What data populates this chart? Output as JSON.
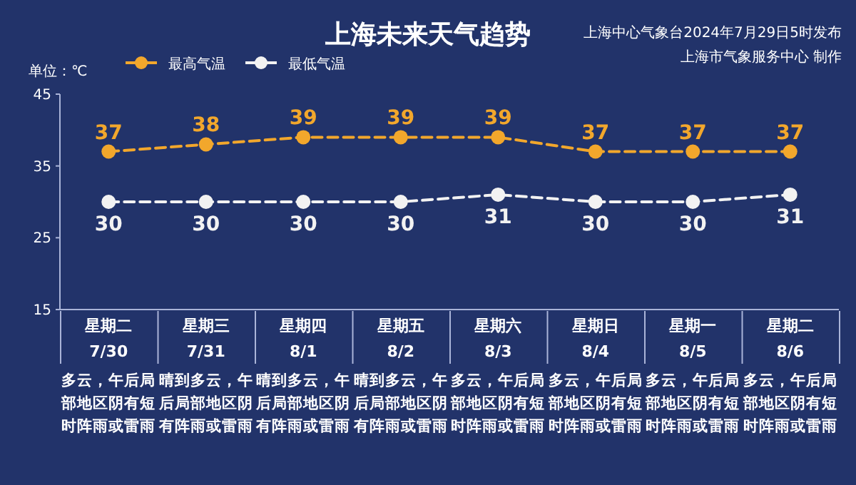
{
  "chart_data": {
    "type": "line",
    "title": "上海未来天气趋势",
    "ylabel": "单位：℃",
    "annotations": [
      "上海中心气象台2024年7月29日5时发布",
      "上海市气象服务中心 制作"
    ],
    "categories": [
      "星期二\n7/30\n多云，午后局部地区阴有短时阵雨或雷雨",
      "星期三\n7/31\n晴到多云，午后局部地区阴有阵雨或雷雨",
      "星期四\n8/1\n晴到多云，午后局部地区阴有阵雨或雷雨",
      "星期五\n8/2\n晴到多云，午后局部地区阴有阵雨或雷雨",
      "星期六\n8/3\n多云，午后局部地区阴有短时阵雨或雷雨",
      "星期日\n8/4\n多云，午后局部地区阴有短时阵雨或雷雨",
      "星期一\n8/5\n多云，午后局部地区阴有短时阵雨或雷雨",
      "星期二\n8/6\n多云，午后局部地区阴有短时阵雨或雷雨"
    ],
    "series": [
      {
        "name": "最高气温",
        "color": "#f2a72c",
        "values": [
          37,
          38,
          39,
          39,
          39,
          37,
          37,
          37
        ]
      },
      {
        "name": "最低气温",
        "color": "#f2f2f2",
        "values": [
          30,
          30,
          30,
          30,
          31,
          30,
          30,
          31
        ]
      }
    ],
    "ylim": [
      15,
      45
    ],
    "yticks": [
      15,
      25,
      35,
      45
    ],
    "grid": false,
    "legend": "top left",
    "marker": "circle",
    "line_style": "dashed",
    "data_labels": true
  }
}
